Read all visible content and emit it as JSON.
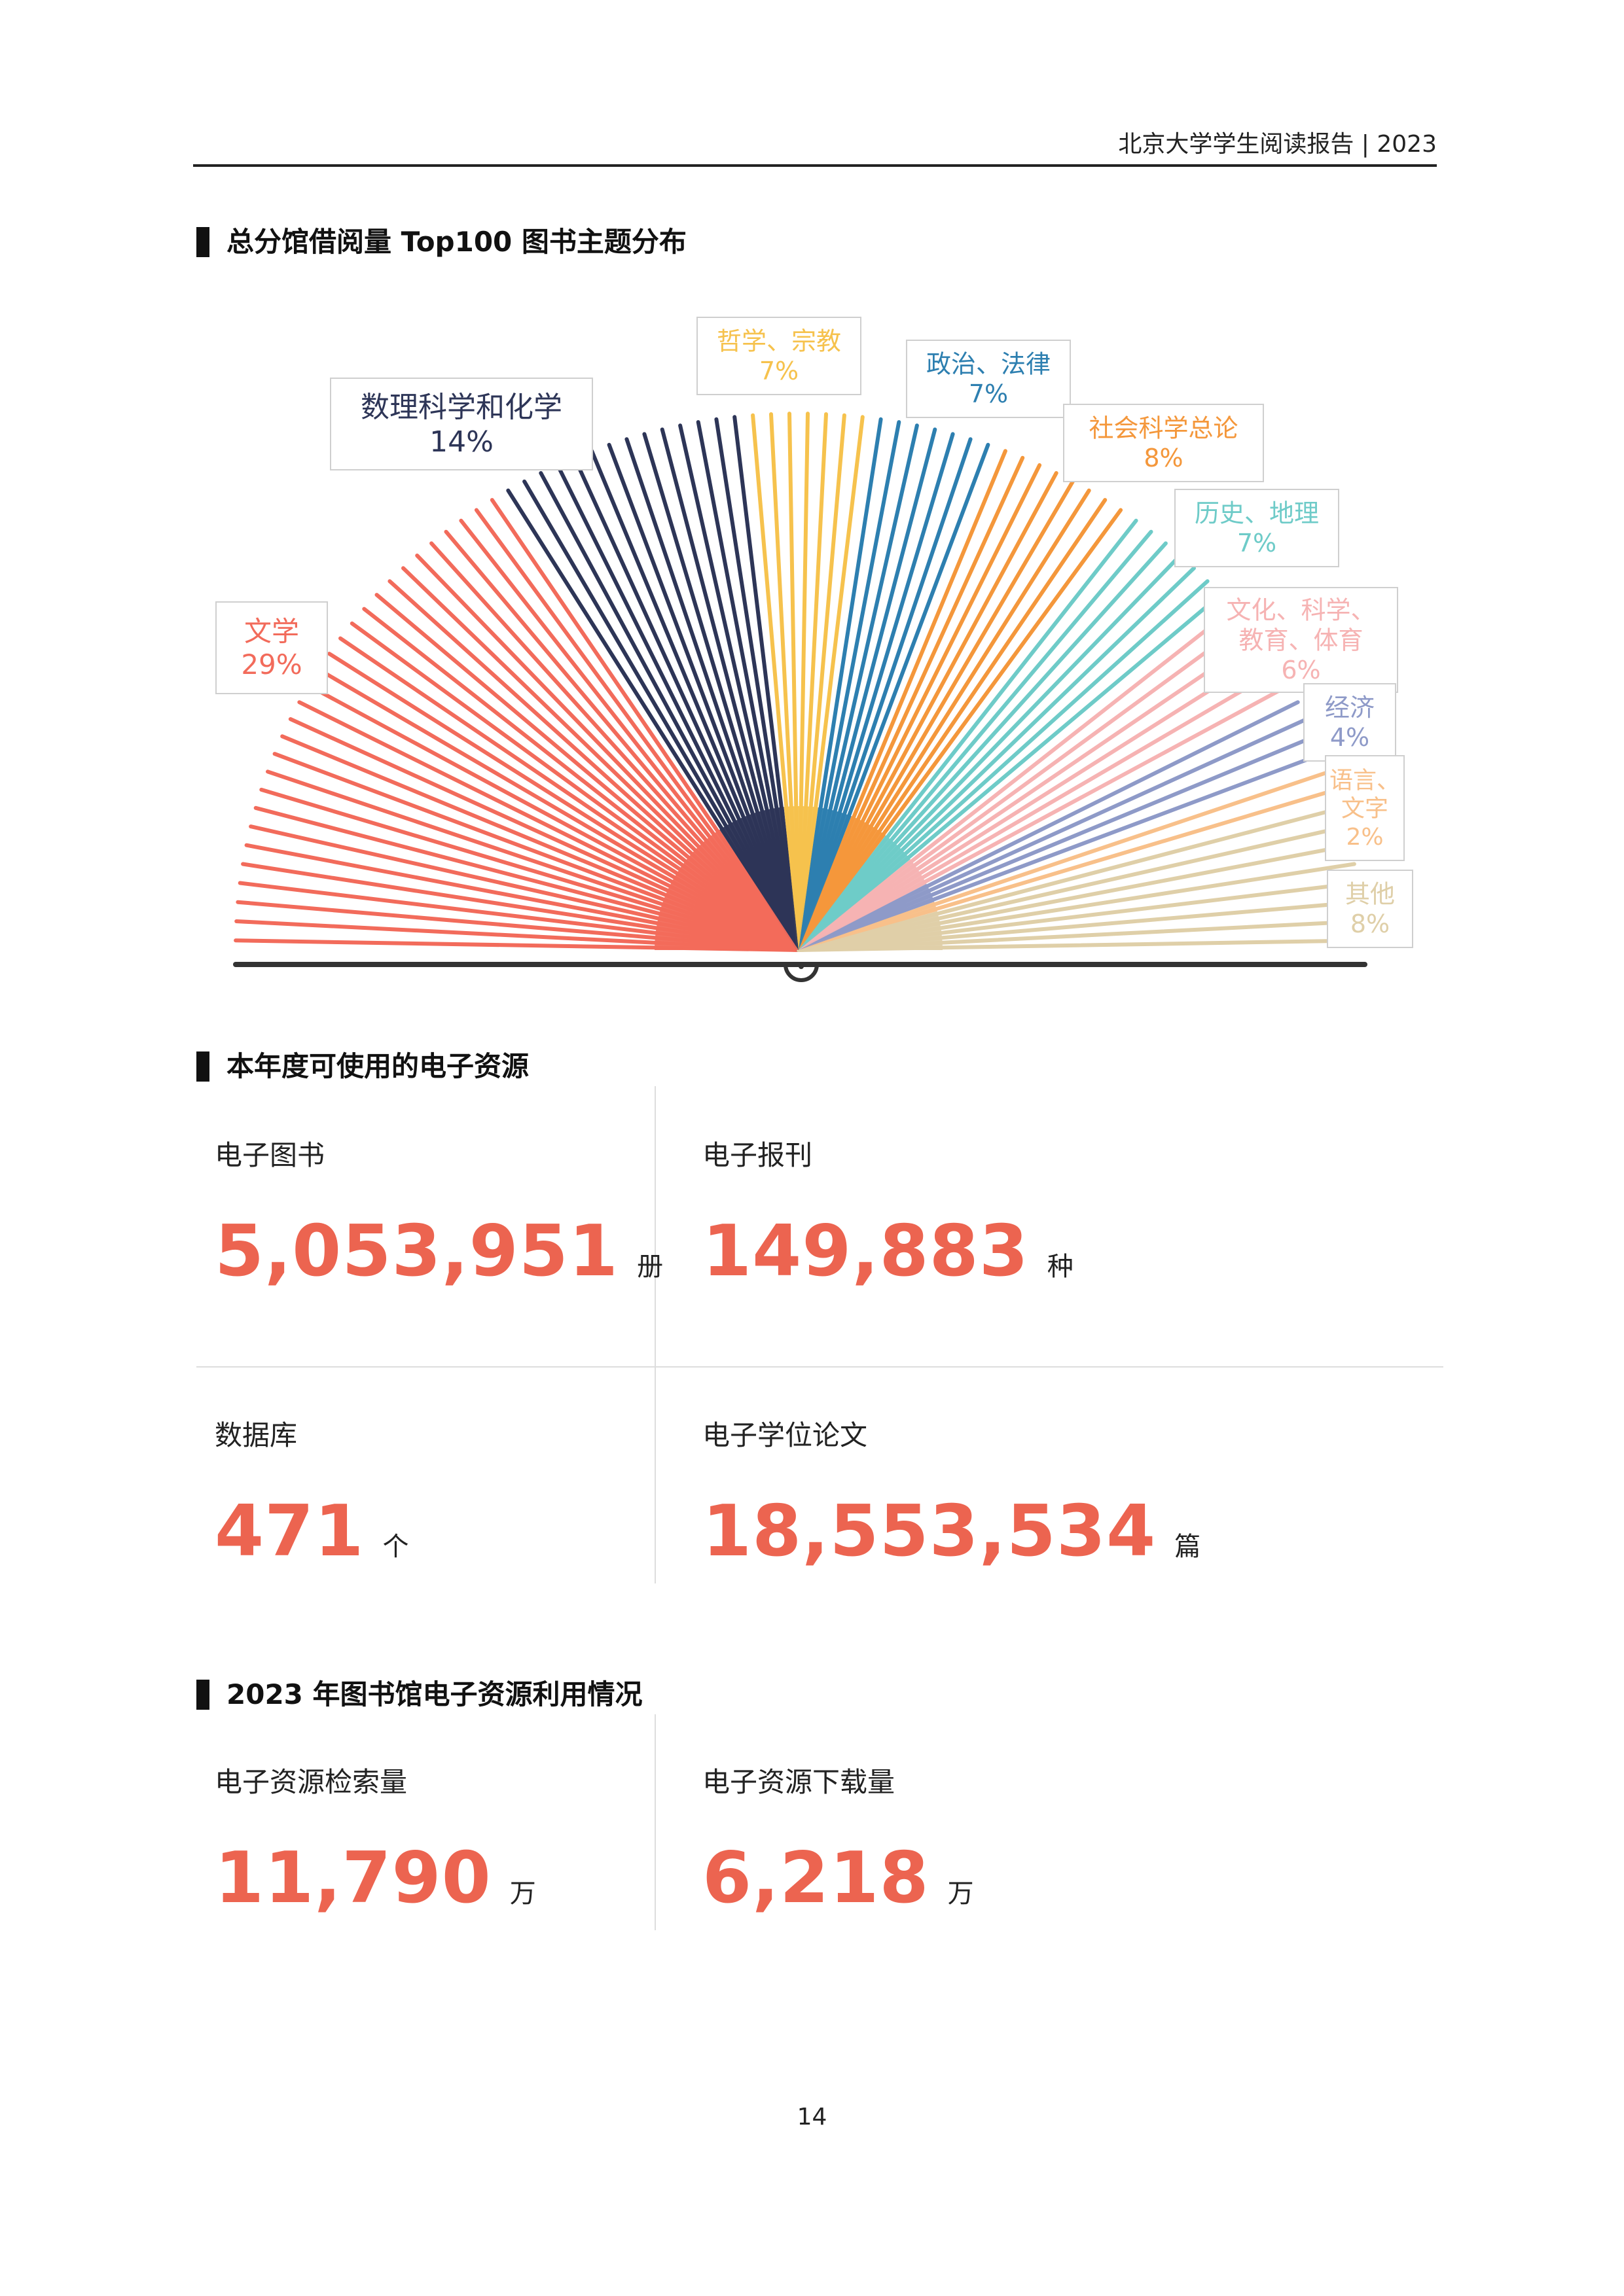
{
  "header": {
    "title": "北京大学学生阅读报告 | 2023"
  },
  "sections": {
    "topics_title": "总分馆借阅量 Top100 图书主题分布",
    "resources_title": "本年度可使用的电子资源",
    "usage_title": "2023 年图书馆电子资源利用情况"
  },
  "chart_data": {
    "type": "radial-lines",
    "title": "",
    "series": [
      {
        "name": "文学",
        "percent": "29%",
        "value": 29,
        "color": "#f26b5b"
      },
      {
        "name": "数理科学和化学",
        "percent": "14%",
        "value": 14,
        "color": "#2d3557"
      },
      {
        "name": "哲学、宗教",
        "percent": "7%",
        "value": 7,
        "color": "#f6c24d"
      },
      {
        "name": "政治、法律",
        "percent": "7%",
        "value": 7,
        "color": "#2d7fb0"
      },
      {
        "name": "社会科学总论",
        "percent": "8%",
        "value": 8,
        "color": "#f4973b"
      },
      {
        "name": "历史、地理",
        "percent": "7%",
        "value": 7,
        "color": "#6ecbc8"
      },
      {
        "name": "文化、科学、教育、体育",
        "percent": "6%",
        "value": 6,
        "color": "#f6b3b3"
      },
      {
        "name": "经济",
        "percent": "4%",
        "value": 4,
        "color": "#8e9ac8"
      },
      {
        "name": "语言、文字",
        "percent": "2%",
        "value": 2,
        "color": "#f8c08a"
      },
      {
        "name": "其他",
        "percent": "8%",
        "value": 8,
        "color": "#dfcfa8"
      }
    ]
  },
  "resources": {
    "ebooks": {
      "label": "电子图书",
      "value": "5,053,951",
      "unit": "册"
    },
    "periodicals": {
      "label": "电子报刊",
      "value": "149,883",
      "unit": "种"
    },
    "databases": {
      "label": "数据库",
      "value": "471",
      "unit": "个"
    },
    "theses": {
      "label": "电子学位论文",
      "value": "18,553,534",
      "unit": "篇"
    }
  },
  "usage": {
    "searches": {
      "label": "电子资源检索量",
      "value": "11,790",
      "unit": "万"
    },
    "downloads": {
      "label": "电子资源下载量",
      "value": "6,218",
      "unit": "万"
    }
  },
  "page_number": "14"
}
